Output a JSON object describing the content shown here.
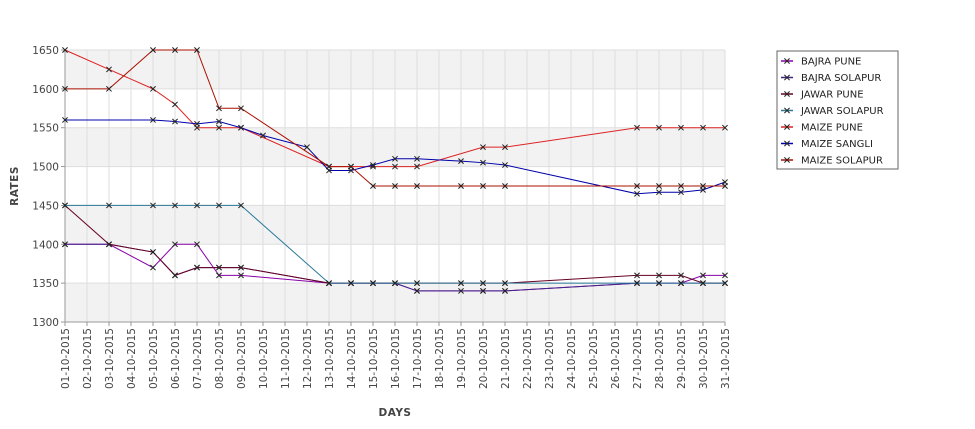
{
  "chart_data": {
    "type": "line",
    "xlabel": "DAYS",
    "ylabel": "RATES",
    "ylim": [
      1300,
      1650
    ],
    "yticks": [
      1300,
      1350,
      1400,
      1450,
      1500,
      1550,
      1600,
      1650
    ],
    "grid": true,
    "legend_position": "right",
    "categories": [
      "01-10-2015",
      "02-10-2015",
      "03-10-2015",
      "04-10-2015",
      "05-10-2015",
      "06-10-2015",
      "07-10-2015",
      "08-10-2015",
      "09-10-2015",
      "10-10-2015",
      "11-10-2015",
      "12-10-2015",
      "13-10-2015",
      "14-10-2015",
      "15-10-2015",
      "16-10-2015",
      "17-10-2015",
      "18-10-2015",
      "19-10-2015",
      "20-10-2015",
      "21-10-2015",
      "22-10-2015",
      "23-10-2015",
      "24-10-2015",
      "25-10-2015",
      "26-10-2015",
      "27-10-2015",
      "28-10-2015",
      "29-10-2015",
      "30-10-2015",
      "31-10-2015"
    ],
    "series": [
      {
        "name": "BAJRA PUNE",
        "color": "#8800aa",
        "points": [
          [
            "01-10-2015",
            1400
          ],
          [
            "03-10-2015",
            1400
          ],
          [
            "05-10-2015",
            1370
          ],
          [
            "06-10-2015",
            1400
          ],
          [
            "07-10-2015",
            1400
          ],
          [
            "08-10-2015",
            1360
          ],
          [
            "09-10-2015",
            1360
          ],
          [
            "13-10-2015",
            1350
          ],
          [
            "14-10-2015",
            1350
          ],
          [
            "15-10-2015",
            1350
          ],
          [
            "16-10-2015",
            1350
          ],
          [
            "17-10-2015",
            1340
          ],
          [
            "20-10-2015",
            1340
          ],
          [
            "21-10-2015",
            1340
          ],
          [
            "27-10-2015",
            1350
          ],
          [
            "28-10-2015",
            1350
          ],
          [
            "29-10-2015",
            1350
          ],
          [
            "30-10-2015",
            1360
          ],
          [
            "31-10-2015",
            1360
          ]
        ]
      },
      {
        "name": "BAJRA SOLAPUR",
        "color": "#442288",
        "points": [
          [
            "01-10-2015",
            1400
          ],
          [
            "03-10-2015",
            1400
          ],
          [
            "05-10-2015",
            1390
          ],
          [
            "06-10-2015",
            1360
          ],
          [
            "07-10-2015",
            1370
          ],
          [
            "08-10-2015",
            1370
          ],
          [
            "09-10-2015",
            1370
          ],
          [
            "13-10-2015",
            1350
          ],
          [
            "14-10-2015",
            1350
          ],
          [
            "15-10-2015",
            1350
          ],
          [
            "16-10-2015",
            1350
          ],
          [
            "17-10-2015",
            1340
          ],
          [
            "19-10-2015",
            1340
          ],
          [
            "20-10-2015",
            1340
          ],
          [
            "21-10-2015",
            1340
          ],
          [
            "27-10-2015",
            1350
          ],
          [
            "28-10-2015",
            1350
          ],
          [
            "29-10-2015",
            1350
          ],
          [
            "30-10-2015",
            1350
          ],
          [
            "31-10-2015",
            1350
          ]
        ]
      },
      {
        "name": "JAWAR PUNE",
        "color": "#660022",
        "points": [
          [
            "01-10-2015",
            1450
          ],
          [
            "03-10-2015",
            1400
          ],
          [
            "05-10-2015",
            1390
          ],
          [
            "06-10-2015",
            1360
          ],
          [
            "07-10-2015",
            1370
          ],
          [
            "08-10-2015",
            1370
          ],
          [
            "09-10-2015",
            1370
          ],
          [
            "13-10-2015",
            1350
          ],
          [
            "14-10-2015",
            1350
          ],
          [
            "15-10-2015",
            1350
          ],
          [
            "16-10-2015",
            1350
          ],
          [
            "17-10-2015",
            1350
          ],
          [
            "19-10-2015",
            1350
          ],
          [
            "20-10-2015",
            1350
          ],
          [
            "21-10-2015",
            1350
          ],
          [
            "27-10-2015",
            1360
          ],
          [
            "28-10-2015",
            1360
          ],
          [
            "29-10-2015",
            1360
          ],
          [
            "30-10-2015",
            1350
          ],
          [
            "31-10-2015",
            1350
          ]
        ]
      },
      {
        "name": "JAWAR SOLAPUR",
        "color": "#2a7a9a",
        "points": [
          [
            "01-10-2015",
            1450
          ],
          [
            "03-10-2015",
            1450
          ],
          [
            "05-10-2015",
            1450
          ],
          [
            "06-10-2015",
            1450
          ],
          [
            "07-10-2015",
            1450
          ],
          [
            "08-10-2015",
            1450
          ],
          [
            "09-10-2015",
            1450
          ],
          [
            "13-10-2015",
            1350
          ],
          [
            "14-10-2015",
            1350
          ],
          [
            "15-10-2015",
            1350
          ],
          [
            "16-10-2015",
            1350
          ],
          [
            "17-10-2015",
            1350
          ],
          [
            "19-10-2015",
            1350
          ],
          [
            "20-10-2015",
            1350
          ],
          [
            "21-10-2015",
            1350
          ],
          [
            "27-10-2015",
            1350
          ],
          [
            "28-10-2015",
            1350
          ],
          [
            "29-10-2015",
            1350
          ],
          [
            "30-10-2015",
            1350
          ],
          [
            "31-10-2015",
            1350
          ]
        ]
      },
      {
        "name": "MAIZE PUNE",
        "color": "#dd2222",
        "points": [
          [
            "01-10-2015",
            1650
          ],
          [
            "03-10-2015",
            1625
          ],
          [
            "05-10-2015",
            1600
          ],
          [
            "06-10-2015",
            1580
          ],
          [
            "07-10-2015",
            1550
          ],
          [
            "08-10-2015",
            1550
          ],
          [
            "09-10-2015",
            1550
          ],
          [
            "13-10-2015",
            1500
          ],
          [
            "14-10-2015",
            1500
          ],
          [
            "15-10-2015",
            1500
          ],
          [
            "16-10-2015",
            1500
          ],
          [
            "17-10-2015",
            1500
          ],
          [
            "20-10-2015",
            1525
          ],
          [
            "21-10-2015",
            1525
          ],
          [
            "27-10-2015",
            1550
          ],
          [
            "28-10-2015",
            1550
          ],
          [
            "29-10-2015",
            1550
          ],
          [
            "30-10-2015",
            1550
          ],
          [
            "31-10-2015",
            1550
          ]
        ]
      },
      {
        "name": "MAIZE SANGLI",
        "color": "#0000aa",
        "points": [
          [
            "01-10-2015",
            1560
          ],
          [
            "05-10-2015",
            1560
          ],
          [
            "06-10-2015",
            1558
          ],
          [
            "07-10-2015",
            1555
          ],
          [
            "08-10-2015",
            1558
          ],
          [
            "09-10-2015",
            1550
          ],
          [
            "10-10-2015",
            1540
          ],
          [
            "12-10-2015",
            1525
          ],
          [
            "13-10-2015",
            1495
          ],
          [
            "14-10-2015",
            1495
          ],
          [
            "15-10-2015",
            1502
          ],
          [
            "16-10-2015",
            1510
          ],
          [
            "17-10-2015",
            1510
          ],
          [
            "19-10-2015",
            1507
          ],
          [
            "20-10-2015",
            1505
          ],
          [
            "21-10-2015",
            1502
          ],
          [
            "27-10-2015",
            1465
          ],
          [
            "28-10-2015",
            1467
          ],
          [
            "29-10-2015",
            1467
          ],
          [
            "30-10-2015",
            1470
          ],
          [
            "31-10-2015",
            1480
          ]
        ]
      },
      {
        "name": "MAIZE SOLAPUR",
        "color": "#aa1100",
        "points": [
          [
            "01-10-2015",
            1600
          ],
          [
            "03-10-2015",
            1600
          ],
          [
            "05-10-2015",
            1650
          ],
          [
            "06-10-2015",
            1650
          ],
          [
            "07-10-2015",
            1650
          ],
          [
            "08-10-2015",
            1575
          ],
          [
            "09-10-2015",
            1575
          ],
          [
            "13-10-2015",
            1500
          ],
          [
            "14-10-2015",
            1500
          ],
          [
            "15-10-2015",
            1475
          ],
          [
            "16-10-2015",
            1475
          ],
          [
            "17-10-2015",
            1475
          ],
          [
            "19-10-2015",
            1475
          ],
          [
            "20-10-2015",
            1475
          ],
          [
            "21-10-2015",
            1475
          ],
          [
            "27-10-2015",
            1475
          ],
          [
            "28-10-2015",
            1475
          ],
          [
            "29-10-2015",
            1475
          ],
          [
            "30-10-2015",
            1475
          ],
          [
            "31-10-2015",
            1475
          ]
        ]
      }
    ]
  }
}
